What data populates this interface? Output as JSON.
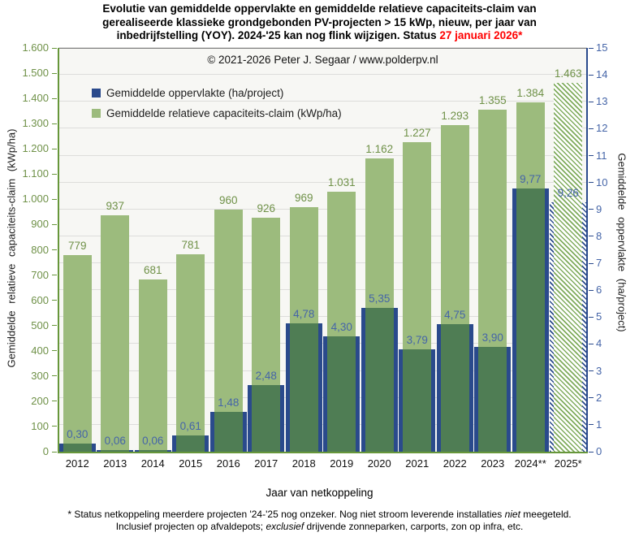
{
  "title": {
    "lines": [
      "Evolutie van gemiddelde oppervlakte en gemiddelde relatieve capaciteits-claim van",
      "gerealiseerde klassieke grondgebonden PV-projecten > 15 kWp, nieuw, per jaar van"
    ],
    "line3_black": "inbedrijfstelling (YOY). 2024-'25 kan nog flink wijzigen. Status ",
    "line3_red": "27 januari 2026*"
  },
  "copyright": "© 2021-2026  Peter J. Segaar / www.polderpv.nl",
  "legend": [
    {
      "label": "Gemiddelde oppervlakte (ha/project)",
      "color": "#2A4A8C"
    },
    {
      "label": "Gemiddelde relatieve capaciteits-claim (kWp/ha)",
      "color": "#9CBB7D"
    }
  ],
  "chart_data": {
    "type": "bar",
    "categories": [
      "2012",
      "2013",
      "2014",
      "2015",
      "2016",
      "2017",
      "2018",
      "2019",
      "2020",
      "2021",
      "2022",
      "2023",
      "2024**",
      "2025*"
    ],
    "series": [
      {
        "name": "Gemiddelde oppervlakte (ha/project)",
        "axis": "right",
        "color": "#2A4A8C",
        "values": [
          0.3,
          0.06,
          0.06,
          0.61,
          1.48,
          2.48,
          4.78,
          4.3,
          5.35,
          3.79,
          4.75,
          3.9,
          9.77,
          9.26
        ],
        "labels": [
          "0,30",
          "0,06",
          "0,06",
          "0,61",
          "1,48",
          "2,48",
          "4,78",
          "4,30",
          "5,35",
          "3,79",
          "4,75",
          "3,90",
          "9,77",
          "9,26"
        ]
      },
      {
        "name": "Gemiddelde relatieve capaciteits-claim (kWp/ha)",
        "axis": "left",
        "color": "#9CBB7D",
        "values": [
          779,
          937,
          681,
          781,
          960,
          926,
          969,
          1031,
          1162,
          1227,
          1293,
          1355,
          1384,
          1463
        ],
        "labels": [
          "779",
          "937",
          "681",
          "781",
          "960",
          "926",
          "969",
          "1.031",
          "1.162",
          "1.227",
          "1.293",
          "1.355",
          "1.384",
          "1.463"
        ]
      }
    ],
    "hatched_category": "2025*",
    "left_axis": {
      "title": "Gemiddelde relatieve capaciteits-claim (kWp/ha)",
      "min": 0,
      "max": 1600,
      "step": 100,
      "ticks": [
        "0",
        "100",
        "200",
        "300",
        "400",
        "500",
        "600",
        "700",
        "800",
        "900",
        "1.000",
        "1.100",
        "1.200",
        "1.300",
        "1.400",
        "1.500",
        "1.600"
      ]
    },
    "right_axis": {
      "title": "Gemiddelde oppervlakte (ha/project)",
      "min": 0,
      "max": 15,
      "step": 1,
      "ticks": [
        "0",
        "1",
        "2",
        "3",
        "4",
        "5",
        "6",
        "7",
        "8",
        "9",
        "10",
        "11",
        "12",
        "13",
        "14",
        "15"
      ]
    },
    "xlabel": "Jaar van netkoppeling",
    "grid": "horizontal gridlines at every 1 ha/project (right axis unit)",
    "legend_position": "top-left inside plot"
  },
  "footnote": {
    "line1_parts": [
      {
        "t": "* Status netkoppeling meerdere projecten '24-'25 nog onzeker. Nog niet stroom leverende installaties "
      },
      {
        "t": "niet",
        "i": true
      },
      {
        "t": " meegeteld."
      }
    ],
    "line2_parts": [
      {
        "t": "Inclusief projecten op afvaldepots; "
      },
      {
        "t": "exclusief",
        "i": true
      },
      {
        "t": " drijvende zonneparken, carports, zon op infra, etc."
      }
    ]
  },
  "colors": {
    "bar_green": "#9CBB7D",
    "bar_navy": "#2A4A8C",
    "overlap_green": "#4F7D54",
    "green_text": "#6F9148",
    "blue_text": "#4565A8",
    "axis_green": "#67973B",
    "grid": "#DDDDDB",
    "plot_bg": "#F7F7F4",
    "title_red": "#FF0000"
  }
}
